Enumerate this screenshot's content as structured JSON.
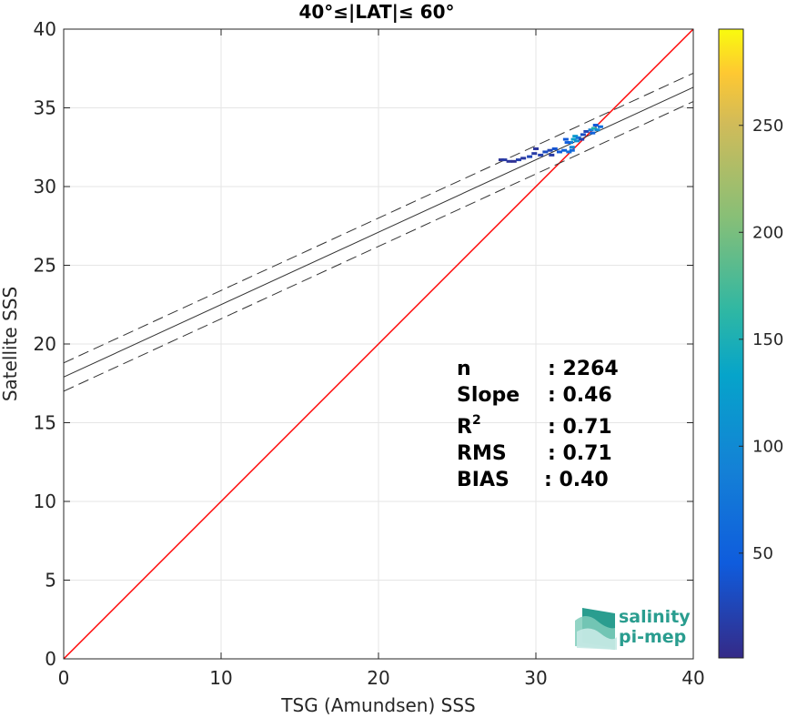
{
  "chart_data": {
    "type": "scatter",
    "title": "40°≤|LAT|≤ 60°",
    "xlabel": "TSG (Amundsen) SSS",
    "ylabel": "Satellite SSS",
    "xlim": [
      0,
      40
    ],
    "ylim": [
      0,
      40
    ],
    "xticks": [
      "0",
      "10",
      "20",
      "30",
      "40"
    ],
    "yticks": [
      "0",
      "5",
      "10",
      "15",
      "20",
      "25",
      "30",
      "35",
      "40"
    ],
    "grid": true,
    "identity_line": {
      "slope": 1,
      "intercept": 0,
      "color": "#ff0000"
    },
    "regression_line": {
      "slope": 0.46,
      "intercept": 17.9,
      "color": "#333333"
    },
    "confidence_lines": [
      {
        "slope": 0.46,
        "intercept": 18.8
      },
      {
        "slope": 0.46,
        "intercept": 17.0
      }
    ],
    "points": [
      {
        "x": 27.8,
        "y": 31.7,
        "c": 5
      },
      {
        "x": 28.0,
        "y": 31.7,
        "c": 8
      },
      {
        "x": 28.3,
        "y": 31.6,
        "c": 6
      },
      {
        "x": 28.6,
        "y": 31.6,
        "c": 4
      },
      {
        "x": 28.9,
        "y": 31.7,
        "c": 10
      },
      {
        "x": 29.2,
        "y": 31.8,
        "c": 7
      },
      {
        "x": 29.6,
        "y": 31.9,
        "c": 12
      },
      {
        "x": 29.9,
        "y": 32.1,
        "c": 8
      },
      {
        "x": 30.3,
        "y": 32.0,
        "c": 10
      },
      {
        "x": 30.6,
        "y": 32.2,
        "c": 15
      },
      {
        "x": 30.9,
        "y": 32.3,
        "c": 12
      },
      {
        "x": 31.2,
        "y": 32.4,
        "c": 18
      },
      {
        "x": 31.5,
        "y": 32.2,
        "c": 20
      },
      {
        "x": 31.8,
        "y": 32.3,
        "c": 25
      },
      {
        "x": 32.1,
        "y": 32.2,
        "c": 30
      },
      {
        "x": 32.3,
        "y": 32.5,
        "c": 45
      },
      {
        "x": 32.2,
        "y": 32.8,
        "c": 40
      },
      {
        "x": 32.4,
        "y": 33.0,
        "c": 60
      },
      {
        "x": 32.6,
        "y": 32.9,
        "c": 50
      },
      {
        "x": 32.5,
        "y": 33.2,
        "c": 55
      },
      {
        "x": 32.7,
        "y": 33.1,
        "c": 35
      },
      {
        "x": 31.9,
        "y": 33.0,
        "c": 20
      },
      {
        "x": 32.0,
        "y": 32.8,
        "c": 22
      },
      {
        "x": 33.0,
        "y": 33.3,
        "c": 15
      },
      {
        "x": 33.2,
        "y": 33.5,
        "c": 12
      },
      {
        "x": 33.5,
        "y": 33.6,
        "c": 40
      },
      {
        "x": 33.7,
        "y": 33.7,
        "c": 70
      },
      {
        "x": 33.9,
        "y": 33.6,
        "c": 45
      },
      {
        "x": 34.1,
        "y": 33.8,
        "c": 30
      },
      {
        "x": 33.6,
        "y": 33.4,
        "c": 25
      },
      {
        "x": 33.8,
        "y": 33.9,
        "c": 20
      },
      {
        "x": 32.9,
        "y": 33.0,
        "c": 10
      },
      {
        "x": 31.0,
        "y": 32.0,
        "c": 8
      },
      {
        "x": 30.0,
        "y": 32.4,
        "c": 6
      },
      {
        "x": 32.3,
        "y": 32.3,
        "c": 28
      }
    ],
    "colorbar": {
      "min": 1,
      "max": 295,
      "ticks": [
        "50",
        "100",
        "150",
        "200",
        "250"
      ],
      "colormap": "parula"
    },
    "stats": [
      {
        "label": "n",
        "value": ": 2264",
        "sup": ""
      },
      {
        "label": "Slope",
        "value": ": 0.46",
        "sup": ""
      },
      {
        "label": "R",
        "value": ": 0.71",
        "sup": "2"
      },
      {
        "label": "RMS",
        "value": ": 0.71",
        "sup": ""
      },
      {
        "label": "BIAS",
        "value": ": 0.40",
        "sup": ""
      }
    ]
  },
  "logo": {
    "line1": "salinity",
    "line2": "pi-mep"
  }
}
